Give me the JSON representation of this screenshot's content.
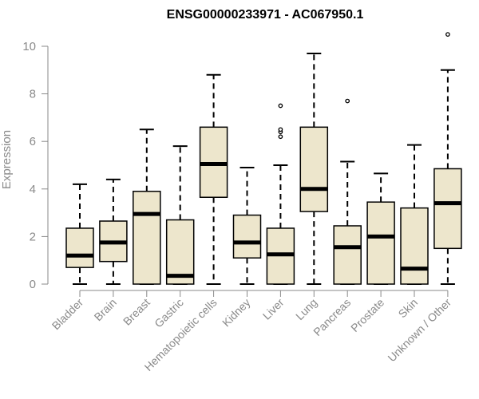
{
  "chart_data": {
    "type": "box",
    "title": "ENSG00000233971 - AC067950.1",
    "ylabel": "Expression",
    "xlabel": "",
    "ylim": [
      0,
      10.5
    ],
    "yticks": [
      0,
      2,
      4,
      6,
      8,
      10
    ],
    "grid": false,
    "legend": "none",
    "colors": {
      "box_fill": "#ede6cc",
      "stroke": "#000000",
      "axis": "#8a8a8a"
    },
    "categories": [
      "Bladder",
      "Brain",
      "Breast",
      "Gastric",
      "Hematopoietic cells",
      "Kidney",
      "Liver",
      "Lung",
      "Pancreas",
      "Prostate",
      "Skin",
      "Unknown / Other"
    ],
    "boxes": [
      {
        "min": 0.0,
        "q1": 0.7,
        "median": 1.2,
        "q3": 2.35,
        "max": 4.2,
        "outliers": []
      },
      {
        "min": 0.0,
        "q1": 0.95,
        "median": 1.75,
        "q3": 2.65,
        "max": 4.4,
        "outliers": []
      },
      {
        "min": 0.0,
        "q1": 0.0,
        "median": 2.95,
        "q3": 3.9,
        "max": 6.5,
        "outliers": []
      },
      {
        "min": 0.0,
        "q1": 0.0,
        "median": 0.35,
        "q3": 2.7,
        "max": 5.8,
        "outliers": []
      },
      {
        "min": 0.0,
        "q1": 3.65,
        "median": 5.05,
        "q3": 6.6,
        "max": 8.8,
        "outliers": []
      },
      {
        "min": 0.0,
        "q1": 1.1,
        "median": 1.75,
        "q3": 2.9,
        "max": 4.9,
        "outliers": []
      },
      {
        "min": 0.0,
        "q1": 0.0,
        "median": 1.25,
        "q3": 2.35,
        "max": 5.0,
        "outliers": [
          6.2,
          6.4,
          6.5,
          7.5
        ]
      },
      {
        "min": 0.0,
        "q1": 3.05,
        "median": 4.0,
        "q3": 6.6,
        "max": 9.7,
        "outliers": []
      },
      {
        "min": 0.0,
        "q1": 0.0,
        "median": 1.55,
        "q3": 2.45,
        "max": 5.15,
        "outliers": [
          7.7
        ]
      },
      {
        "min": 0.0,
        "q1": 0.0,
        "median": 2.0,
        "q3": 3.45,
        "max": 4.65,
        "outliers": []
      },
      {
        "min": 0.0,
        "q1": 0.0,
        "median": 0.65,
        "q3": 3.2,
        "max": 5.85,
        "outliers": []
      },
      {
        "min": 0.0,
        "q1": 1.5,
        "median": 3.4,
        "q3": 4.85,
        "max": 9.0,
        "outliers": [
          10.5
        ]
      }
    ]
  }
}
